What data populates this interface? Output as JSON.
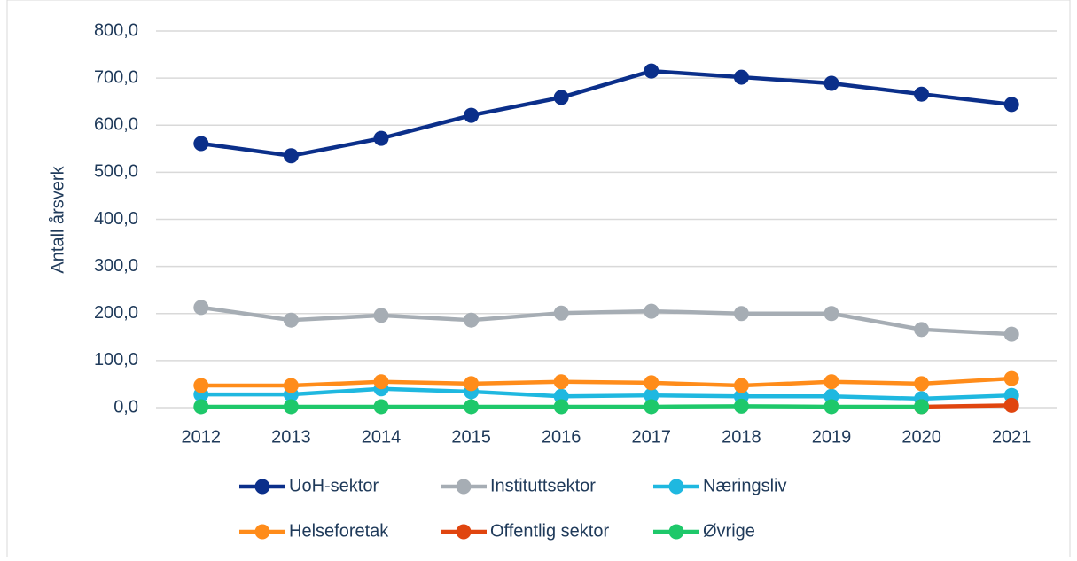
{
  "chart_data": {
    "type": "line",
    "y_label": "Antall årsverk",
    "categories": [
      "2012",
      "2013",
      "2014",
      "2015",
      "2016",
      "2017",
      "2018",
      "2019",
      "2020",
      "2021"
    ],
    "ylim": [
      0,
      800
    ],
    "yticks": [
      {
        "value": 0,
        "label": "0,0"
      },
      {
        "value": 100,
        "label": "100,0"
      },
      {
        "value": 200,
        "label": "200,0"
      },
      {
        "value": 300,
        "label": "300,0"
      },
      {
        "value": 400,
        "label": "400,0"
      },
      {
        "value": 500,
        "label": "500,0"
      },
      {
        "value": 600,
        "label": "600,0"
      },
      {
        "value": 700,
        "label": "700,0"
      },
      {
        "value": 800,
        "label": "800,0"
      }
    ],
    "grid": true,
    "series": [
      {
        "name": "UoH-sektor",
        "color": "#0b2f8a",
        "values": [
          561,
          535,
          572,
          621,
          659,
          715,
          702,
          689,
          666,
          644
        ]
      },
      {
        "name": "Instituttsektor",
        "color": "#a6adb4",
        "values": [
          213,
          186,
          196,
          186,
          201,
          205,
          200,
          200,
          166,
          156
        ]
      },
      {
        "name": "Næringsliv",
        "color": "#1fb8e0",
        "values": [
          28,
          28,
          40,
          34,
          24,
          26,
          24,
          24,
          19,
          26
        ]
      },
      {
        "name": "Helseforetak",
        "color": "#ff8c1a",
        "values": [
          47,
          47,
          55,
          51,
          55,
          53,
          47,
          55,
          51,
          62
        ]
      },
      {
        "name": "Offentlig sektor",
        "color": "#e0450f",
        "values": [
          null,
          null,
          null,
          null,
          null,
          null,
          null,
          null,
          2,
          5
        ]
      },
      {
        "name": "Øvrige",
        "color": "#1ec86a",
        "values": [
          2,
          2,
          2,
          2,
          2,
          2,
          3,
          2,
          2,
          null
        ]
      }
    ]
  }
}
